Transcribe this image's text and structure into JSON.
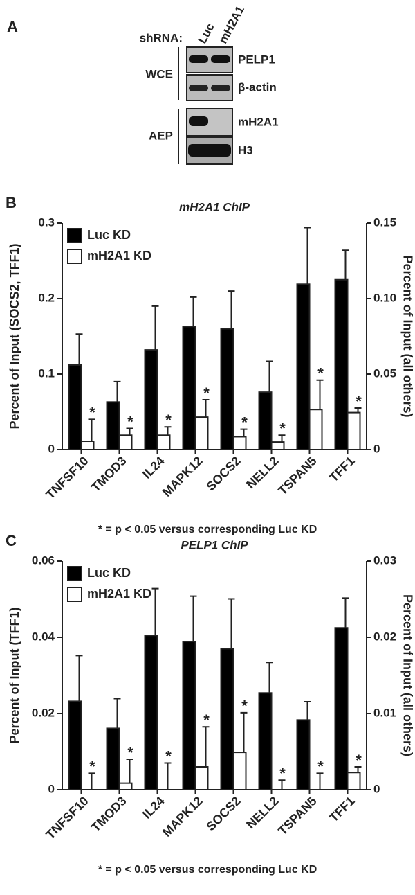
{
  "panel_a": {
    "letter": "A",
    "shrna_label": "shRNA:",
    "lanes": [
      "Luc",
      "mH2A1"
    ],
    "groups": [
      {
        "name": "WCE",
        "blots": [
          "PELP1",
          "β-actin"
        ]
      },
      {
        "name": "AEP",
        "blots": [
          "mH2A1",
          "H3"
        ]
      }
    ]
  },
  "chart_data": [
    {
      "type": "bar",
      "panel": "B",
      "title": "mH2A1 ChIP",
      "ylabel": "Percent of Input (SOCS2, TFF1)",
      "y2label": "Percent of Input (all others)",
      "categories": [
        "TNFSF10",
        "TMOD3",
        "IL24",
        "MAPK12",
        "SOCS2",
        "NELL2",
        "TSPAN5",
        "TFF1"
      ],
      "series": [
        {
          "name": "Luc KD",
          "color": "#000000",
          "values": [
            0.112,
            0.063,
            0.132,
            0.163,
            0.16,
            0.076,
            0.219,
            0.225
          ],
          "errors": [
            0.041,
            0.027,
            0.058,
            0.039,
            0.05,
            0.041,
            0.075,
            0.039
          ]
        },
        {
          "name": "mH2A1 KD",
          "color": "#ffffff",
          "values": [
            0.011,
            0.019,
            0.019,
            0.043,
            0.017,
            0.01,
            0.053,
            0.049
          ],
          "errors": [
            0.029,
            0.009,
            0.011,
            0.023,
            0.01,
            0.009,
            0.039,
            0.006
          ],
          "marker": "*"
        }
      ],
      "ylim": [
        0,
        0.3
      ],
      "yticks": [
        0,
        0.1,
        0.2,
        0.3
      ],
      "y2lim": [
        0,
        0.15
      ],
      "y2ticks": [
        0,
        0.05,
        {
          "value": 0.1,
          "label": "0.10"
        },
        0.15
      ],
      "note": "* = p < 0.05 versus corresponding Luc KD",
      "legend": "upper left"
    },
    {
      "type": "bar",
      "panel": "C",
      "title": "PELP1 ChIP",
      "ylabel": "Percent of Input (TFF1)",
      "y2label": "Percent of Input (all others)",
      "categories": [
        "TNFSF10",
        "TMOD3",
        "IL24",
        "MAPK12",
        "SOCS2",
        "NELL2",
        "TSPAN5",
        "TFF1"
      ],
      "series": [
        {
          "name": "Luc KD",
          "color": "#000000",
          "values": [
            0.0232,
            0.0161,
            0.0405,
            0.0389,
            0.037,
            0.0254,
            0.0183,
            0.0425
          ],
          "errors": [
            0.012,
            0.0078,
            0.0123,
            0.0119,
            0.0131,
            0.008,
            0.0048,
            0.0078
          ]
        },
        {
          "name": "mH2A1 KD",
          "color": "#ffffff",
          "values": [
            0,
            0.0017,
            0,
            0.006,
            0.0098,
            0,
            0,
            0.0045
          ],
          "errors": [
            0.0043,
            0.0063,
            0.007,
            0.0105,
            0.0104,
            0.0025,
            0.0043,
            0.0015
          ],
          "marker": "*"
        }
      ],
      "ylim": [
        0,
        0.06
      ],
      "yticks": [
        0,
        0.02,
        0.04,
        0.06
      ],
      "y2lim": [
        0,
        0.03
      ],
      "y2ticks": [
        0,
        0.01,
        0.02,
        0.03
      ],
      "note": "* = p < 0.05 versus corresponding Luc KD",
      "legend": "upper left"
    }
  ]
}
